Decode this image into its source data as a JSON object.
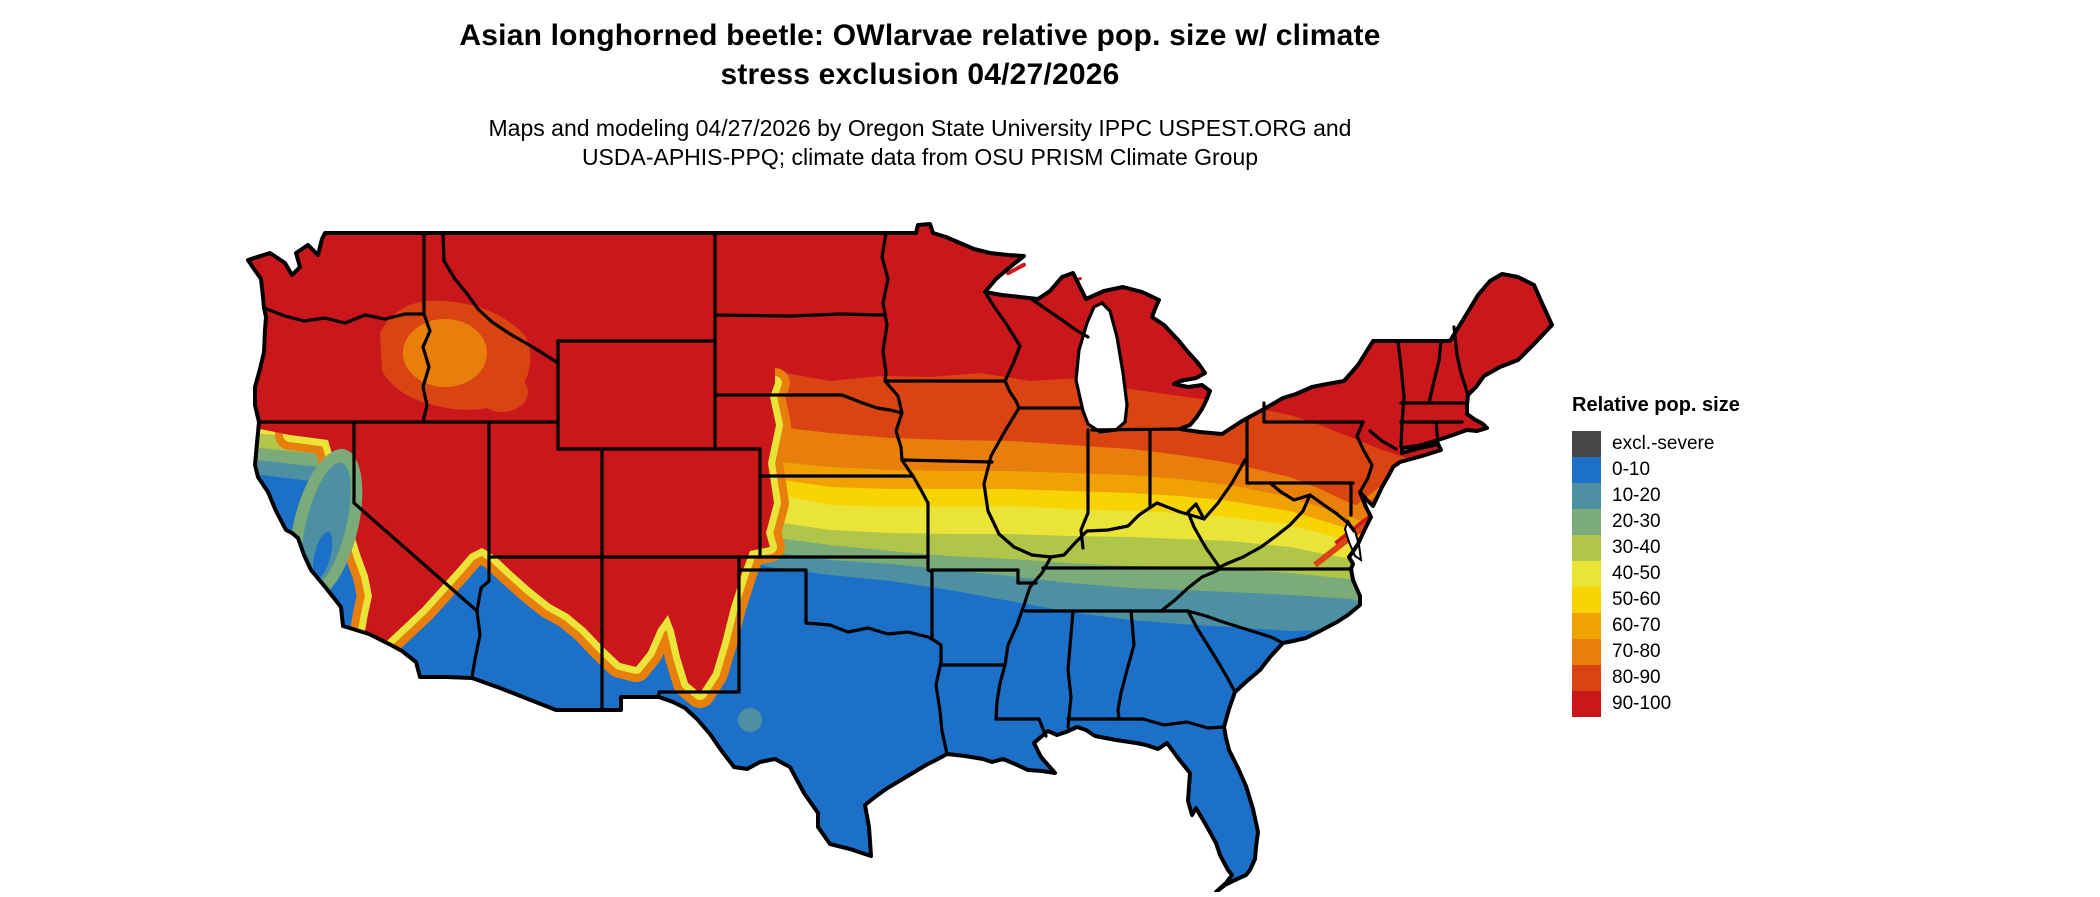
{
  "header": {
    "title_line1": "Asian longhorned beetle: OWlarvae relative pop. size w/ climate",
    "title_line2": "stress exclusion 04/27/2026",
    "subtitle_line1": "Maps and modeling 04/27/2026 by Oregon State University IPPC USPEST.ORG and",
    "subtitle_line2": "USDA-APHIS-PPQ; climate data from OSU PRISM Climate Group"
  },
  "legend": {
    "title": "Relative pop. size",
    "items": [
      {
        "label": "excl.-severe",
        "color": "#474747"
      },
      {
        "label": "0-10",
        "color": "#1C70C8"
      },
      {
        "label": "10-20",
        "color": "#4D90A2"
      },
      {
        "label": "20-30",
        "color": "#7BAB79"
      },
      {
        "label": "30-40",
        "color": "#AFC64A"
      },
      {
        "label": "40-50",
        "color": "#E9E437"
      },
      {
        "label": "50-60",
        "color": "#F8D404"
      },
      {
        "label": "60-70",
        "color": "#F0A202"
      },
      {
        "label": "70-80",
        "color": "#E87F0D"
      },
      {
        "label": "80-90",
        "color": "#DA4413"
      },
      {
        "label": "90-100",
        "color": "#C9171B"
      }
    ]
  },
  "map": {
    "border_color": "#000000",
    "water_color": "#FFFFFF",
    "background": "#FFFFFF"
  }
}
